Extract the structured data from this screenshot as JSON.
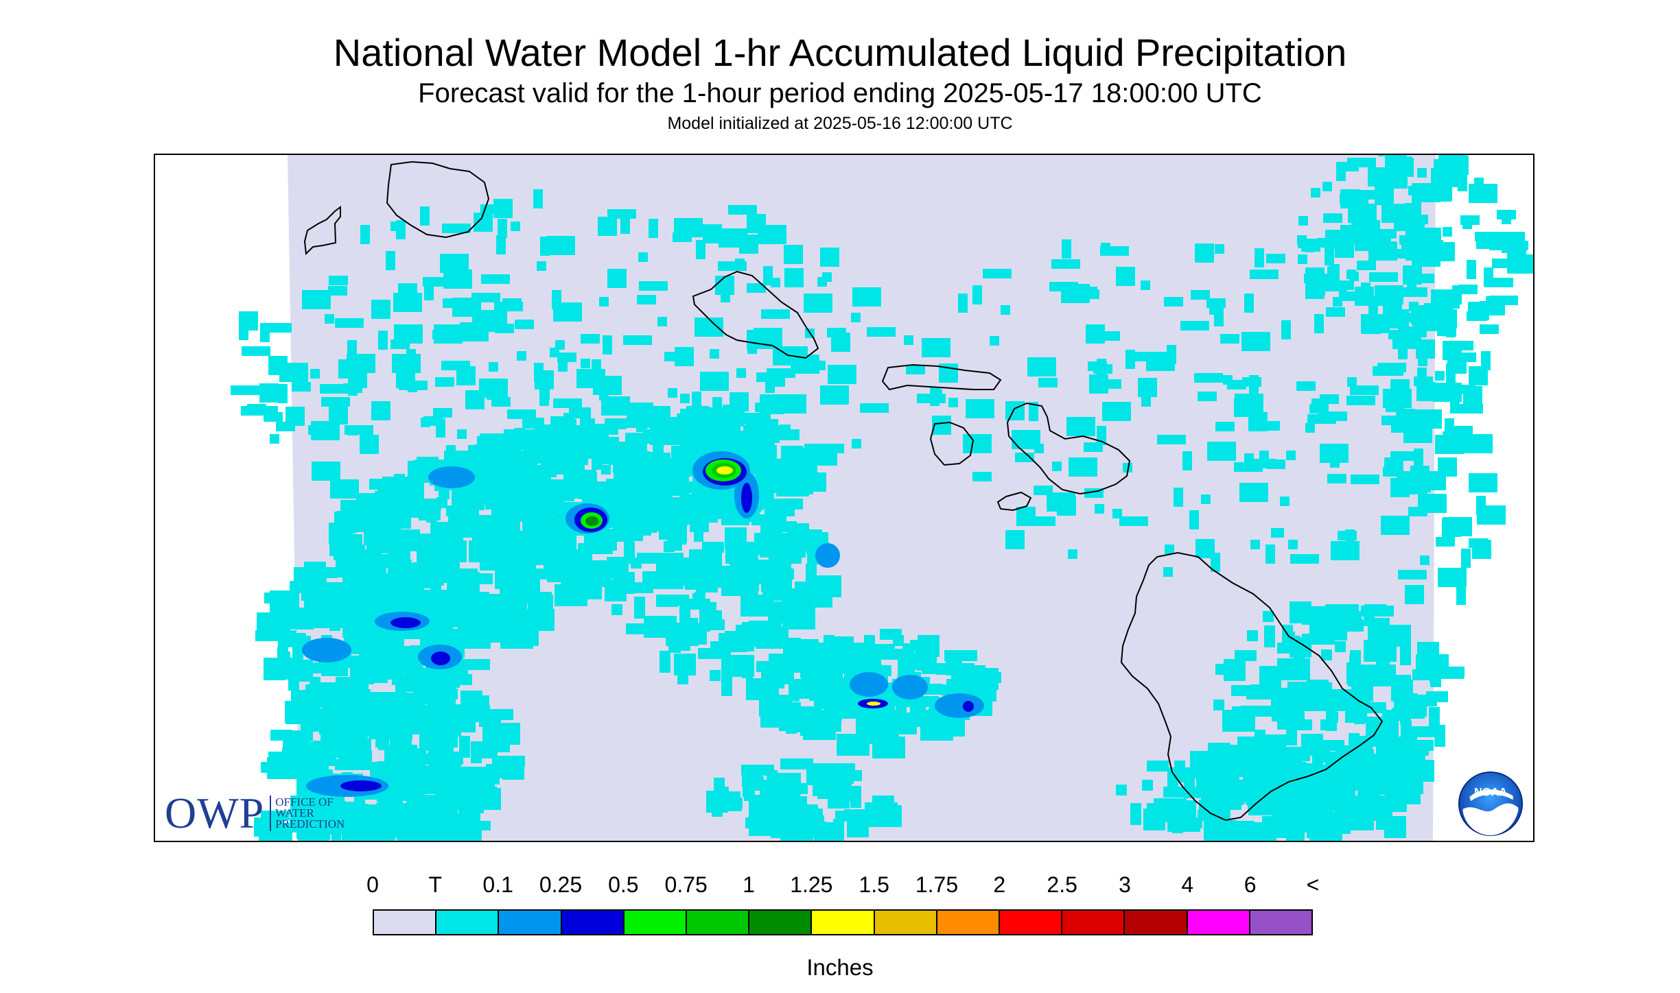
{
  "header": {
    "title": "National Water Model 1-hr Accumulated Liquid Precipitation",
    "subtitle": "Forecast valid for the 1-hour period ending 2025-05-17 18:00:00 UTC",
    "init_line": "Model initialized at 2025-05-16 12:00:00 UTC"
  },
  "map": {
    "region": "Hawaiian Islands",
    "islands": [
      "Niihau",
      "Kauai",
      "Oahu",
      "Molokai",
      "Lanai",
      "Maui",
      "Kahoolawe",
      "Hawaii"
    ],
    "colors": {
      "background": "#dcdcf0",
      "outline": "#000000",
      "no_data": "#ffffff"
    }
  },
  "logos": {
    "owp_text": "OWP",
    "owp_line1": "OFFICE OF",
    "owp_line2": "WATER",
    "owp_line3": "PREDICTION",
    "noaa_text": "NOAA"
  },
  "legend": {
    "labels": [
      "0",
      "T",
      "0.1",
      "0.25",
      "0.5",
      "0.75",
      "1",
      "1.25",
      "1.5",
      "1.75",
      "2",
      "2.5",
      "3",
      "4",
      "6",
      "<"
    ],
    "colors": [
      "#dcdcf0",
      "#00e6e6",
      "#0096f0",
      "#0000dc",
      "#00f000",
      "#00c800",
      "#008c00",
      "#ffff00",
      "#e6be00",
      "#ff8c00",
      "#ff0000",
      "#dc0000",
      "#b40000",
      "#ff00ff",
      "#9650c8"
    ],
    "units": "Inches"
  }
}
